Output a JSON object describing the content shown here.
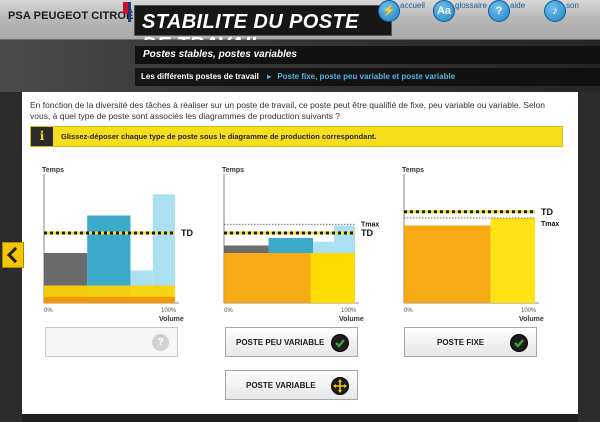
{
  "header": {
    "logo_text": "PSA PEUGEOT CITROËN",
    "title": "STABILITE DU POSTE DE TRAVAIL",
    "nav": [
      {
        "label": "accueil",
        "icon": "lightning-icon"
      },
      {
        "label": "glossaire",
        "icon": "book-icon"
      },
      {
        "label": "aide",
        "icon": "question-icon"
      },
      {
        "label": "son",
        "icon": "speaker-icon"
      }
    ]
  },
  "subtitle": "Postes stables, postes variables",
  "breadcrumb": {
    "section": "Les différents postes de travail",
    "current": "Poste fixe, poste peu variable et poste variable"
  },
  "intro": "En fonction de la diversité des tâches à réaliser sur un poste de travail, ce poste peut être qualifié de fixe, peu variable ou variable. Selon vous, à quel type de poste sont associés les diagrammes de production suivants ?",
  "instruction": {
    "icon": "info-icon",
    "text": "Glissez-déposer chaque type de poste sous le diagramme de production correspondant."
  },
  "chart_common": {
    "ylabel": "Temps",
    "xlabel": "Volume",
    "x_start": "0%",
    "x_end": "100%",
    "td_label": "TD",
    "tmax_label": "Tmax"
  },
  "chart_data": [
    {
      "type": "bar",
      "title": "",
      "ylabel": "Temps",
      "xlabel": "Volume",
      "xlim": [
        "0%",
        "100%"
      ],
      "reference_lines": [
        {
          "name": "TD",
          "style": "yellow-black dashed"
        }
      ],
      "blocks": [
        {
          "x0": 0,
          "x1": 33,
          "y0": 0,
          "y1": 40,
          "color": "#5e5e5e"
        },
        {
          "x0": 33,
          "x1": 66,
          "y0": 0,
          "y1": 70,
          "color": "#2aa3c6"
        },
        {
          "x0": 66,
          "x1": 83,
          "y0": 0,
          "y1": 26,
          "color": "#a3ddf0"
        },
        {
          "x0": 83,
          "x1": 100,
          "y0": 0,
          "y1": 87,
          "color": "#a3ddf0"
        },
        {
          "x0": 0,
          "x1": 100,
          "y0": 0,
          "y1": 14,
          "color": "#ffd400"
        },
        {
          "x0": 0,
          "x1": 100,
          "y0": 0,
          "y1": 5,
          "color": "#f29400"
        }
      ],
      "td": 56
    },
    {
      "type": "bar",
      "title": "",
      "ylabel": "Temps",
      "xlabel": "Volume",
      "xlim": [
        "0%",
        "100%"
      ],
      "reference_lines": [
        {
          "name": "TD"
        },
        {
          "name": "Tmax"
        }
      ],
      "blocks": [
        {
          "x0": 0,
          "x1": 100,
          "y0": 0,
          "y1": 40,
          "color": "#f5a300"
        },
        {
          "x0": 0,
          "x1": 34,
          "y0": 40,
          "y1": 46,
          "color": "#5e5e5e"
        },
        {
          "x0": 34,
          "x1": 68,
          "y0": 40,
          "y1": 52,
          "color": "#2aa3c6"
        },
        {
          "x0": 68,
          "x1": 84,
          "y0": 40,
          "y1": 49,
          "color": "#a3ddf0"
        },
        {
          "x0": 84,
          "x1": 100,
          "y0": 40,
          "y1": 62,
          "color": "#a3ddf0"
        },
        {
          "x0": 66,
          "x1": 100,
          "y0": 0,
          "y1": 40,
          "color": "#ffe100"
        }
      ],
      "td": 56,
      "tmax": 63
    },
    {
      "type": "bar",
      "title": "",
      "ylabel": "Temps",
      "xlabel": "Volume",
      "xlim": [
        "0%",
        "100%"
      ],
      "reference_lines": [
        {
          "name": "TD"
        },
        {
          "name": "Tmax"
        }
      ],
      "blocks": [
        {
          "x0": 0,
          "x1": 66,
          "y0": 0,
          "y1": 62,
          "color": "#f5a300"
        },
        {
          "x0": 66,
          "x1": 100,
          "y0": 0,
          "y1": 68,
          "color": "#ffe100"
        }
      ],
      "td": 73,
      "tmax": 68
    }
  ],
  "dropzones": [
    {
      "label": "",
      "state": "empty",
      "icon": "question-icon"
    },
    {
      "label": "POSTE PEU VARIABLE",
      "state": "correct",
      "icon": "check-icon"
    },
    {
      "label": "POSTE FIXE",
      "state": "correct",
      "icon": "check-icon"
    }
  ],
  "draggable": {
    "label": "POSTE VARIABLE",
    "icon": "move-icon"
  },
  "colors": {
    "accent_blue": "#4fb4e6",
    "instruction_yellow": "#f6de1c",
    "check_green": "#3aa335"
  }
}
